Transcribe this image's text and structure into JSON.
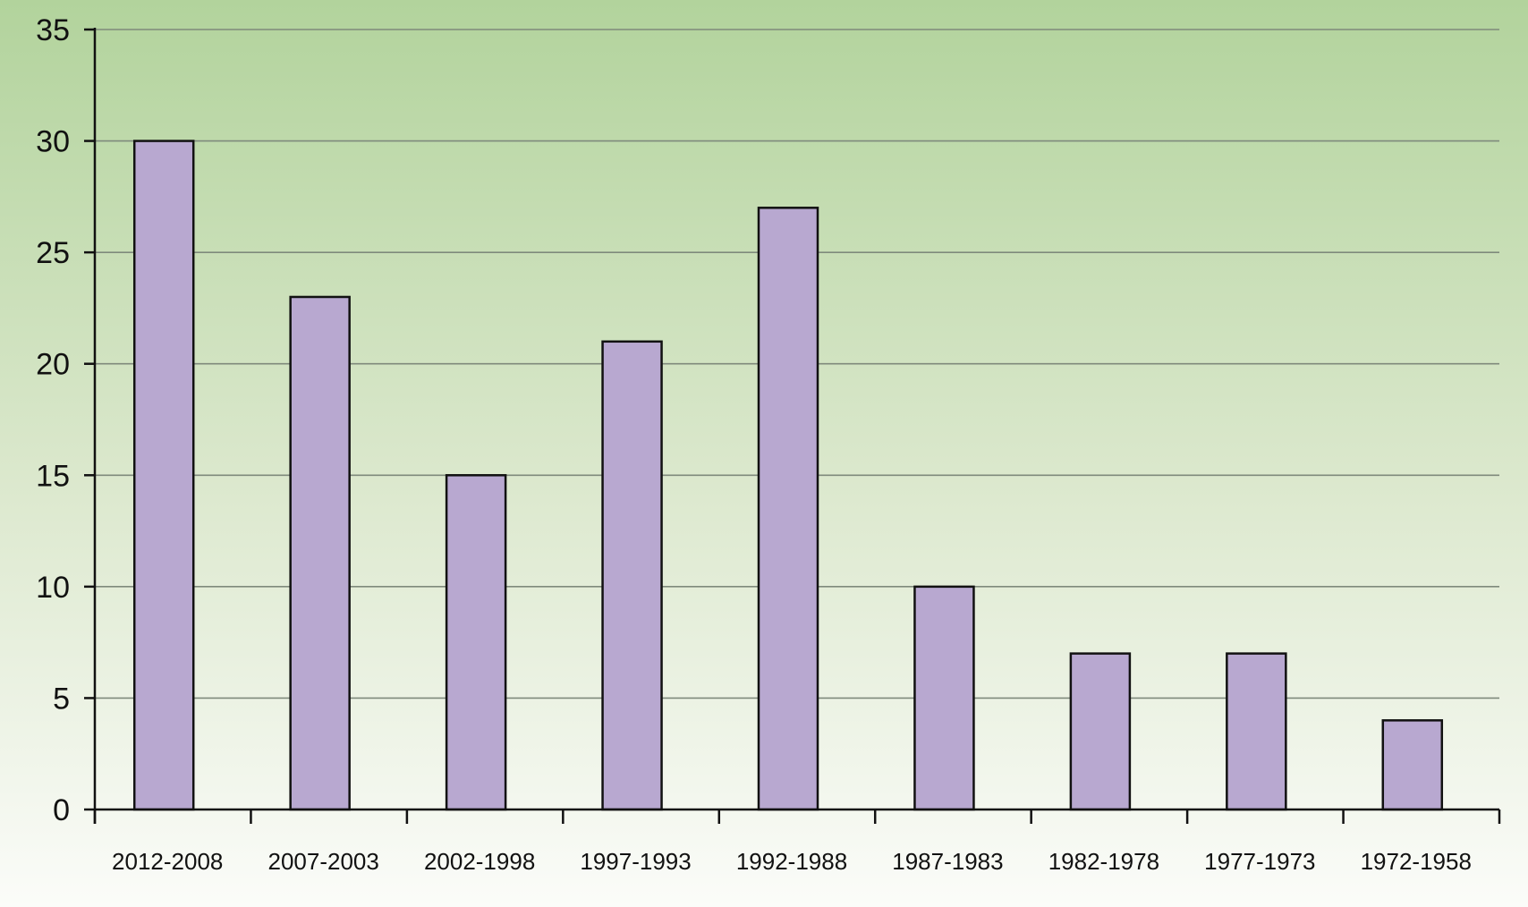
{
  "chart_data": {
    "type": "bar",
    "title": "",
    "xlabel": "",
    "ylabel": "",
    "categories": [
      "2012-2008",
      "2007-2003",
      "2002-1998",
      "1997-1993",
      "1992-1988",
      "1987-1983",
      "1982-1978",
      "1977-1973",
      "1972-1958"
    ],
    "values": [
      30,
      23,
      15,
      21,
      27,
      10,
      7,
      7,
      4
    ],
    "ylim": [
      0,
      35
    ],
    "yticks": [
      0,
      5,
      10,
      15,
      20,
      25,
      30,
      35
    ],
    "grid": true,
    "legend": "none",
    "colors": {
      "bar_fill": "#b8a8d0",
      "bar_stroke": "#111111",
      "gridline": "#7f8a7c",
      "axis": "#111111",
      "background_top": "#b2d39c",
      "background_bottom": "#fbfcf9"
    }
  }
}
